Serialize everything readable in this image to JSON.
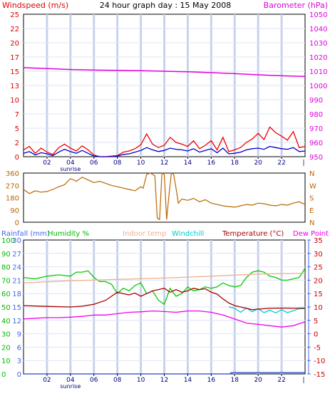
{
  "title": "24 hour graph day : 15 May 2008",
  "chart_data": [
    {
      "id": "wind_baro",
      "type": "line",
      "left_label": "Windspeed (m/s)",
      "right_label": "Barometer (hPa)",
      "left_ylim": [
        0,
        25
      ],
      "left_ticks": [
        "0",
        "2",
        "5",
        "7",
        "10",
        "13",
        "15",
        "17",
        "20",
        "22",
        "25"
      ],
      "right_ylim": [
        950,
        1050
      ],
      "right_ticks": [
        "950",
        "960",
        "970",
        "980",
        "990",
        "1000",
        "1010",
        "1020",
        "1030",
        "1040",
        "1050"
      ],
      "x_ticks": [
        "02",
        "04",
        "06",
        "08",
        "10",
        "12",
        "14",
        "16",
        "18",
        "20",
        "22"
      ],
      "x_sub_label": "sunrise",
      "series": [
        {
          "name": "Barometer",
          "axis": "right",
          "color": "#e000e0",
          "x": [
            0,
            2,
            4,
            6,
            8,
            10,
            12,
            14,
            16,
            18,
            20,
            22,
            24
          ],
          "values": [
            1012.5,
            1011.9,
            1011.2,
            1010.8,
            1010.6,
            1010.4,
            1010.0,
            1009.6,
            1009.0,
            1008.3,
            1007.5,
            1006.8,
            1006.3
          ]
        },
        {
          "name": "Wind gust",
          "axis": "left",
          "color": "#ee0000",
          "x": [
            0,
            0.5,
            1,
            1.5,
            2,
            2.5,
            3,
            3.5,
            4,
            4.5,
            5,
            5.5,
            6,
            6.5,
            7,
            7.5,
            8,
            8.5,
            9,
            9.5,
            10,
            10.5,
            11,
            11.5,
            12,
            12.5,
            13,
            13.5,
            14,
            14.5,
            15,
            15.5,
            16,
            16.5,
            17,
            17.5,
            18,
            18.5,
            19,
            19.5,
            20,
            20.5,
            21,
            21.5,
            22,
            22.5,
            23,
            23.5,
            24
          ],
          "values": [
            1.2,
            1.8,
            0.6,
            1.5,
            0.8,
            0.4,
            1.6,
            2.2,
            1.5,
            1.0,
            1.9,
            1.2,
            0.3,
            0,
            0,
            0.1,
            0.2,
            0.8,
            1.0,
            1.4,
            2.1,
            4.0,
            2.2,
            1.6,
            2.0,
            3.4,
            2.5,
            2.2,
            1.8,
            2.8,
            1.4,
            2.0,
            2.8,
            1.2,
            3.4,
            0.9,
            1.2,
            1.6,
            2.5,
            3.1,
            4.1,
            3.0,
            5.2,
            4.2,
            3.6,
            2.9,
            4.4,
            1.6,
            1.8
          ]
        },
        {
          "name": "Wind speed",
          "axis": "left",
          "color": "#0000cc",
          "x": [
            0,
            0.5,
            1,
            1.5,
            2,
            2.5,
            3,
            3.5,
            4,
            4.5,
            5,
            5.5,
            6,
            6.5,
            7,
            7.5,
            8,
            8.5,
            9,
            9.5,
            10,
            10.5,
            11,
            11.5,
            12,
            12.5,
            13,
            13.5,
            14,
            14.5,
            15,
            15.5,
            16,
            16.5,
            17,
            17.5,
            18,
            18.5,
            19,
            19.5,
            20,
            20.5,
            21,
            21.5,
            22,
            22.5,
            23,
            23.5,
            24
          ],
          "values": [
            0.6,
            0.9,
            0.3,
            0.7,
            0.5,
            0.2,
            0.8,
            1.3,
            0.9,
            0.6,
            1.1,
            0.6,
            0.1,
            0,
            0,
            0,
            0.1,
            0.4,
            0.5,
            0.8,
            1.1,
            1.6,
            1.2,
            0.9,
            1.1,
            1.5,
            1.3,
            1.2,
            1.0,
            1.4,
            0.8,
            1.1,
            1.4,
            0.7,
            1.5,
            0.5,
            0.6,
            0.8,
            1.2,
            1.4,
            1.5,
            1.3,
            1.8,
            1.6,
            1.4,
            1.3,
            1.6,
            0.9,
            1.0
          ]
        }
      ]
    },
    {
      "id": "wind_dir",
      "type": "line",
      "left_ylim": [
        0,
        360
      ],
      "left_ticks": [
        "0",
        "90",
        "180",
        "270",
        "360"
      ],
      "right_ticks": [
        "N",
        "E",
        "S",
        "W",
        "N"
      ],
      "series": [
        {
          "name": "Wind direction",
          "color": "#bb6600",
          "x": [
            0,
            0.5,
            1,
            1.5,
            2,
            2.5,
            3,
            3.5,
            4,
            4.5,
            5,
            5.5,
            6,
            6.5,
            7,
            7.5,
            8,
            8.5,
            9,
            9.5,
            10,
            10.2,
            10.5,
            10.8,
            11.0,
            11.2,
            11.4,
            11.6,
            11.8,
            12.0,
            12.2,
            12.4,
            12.6,
            12.8,
            13.0,
            13.2,
            13.5,
            14,
            14.5,
            15,
            15.5,
            16,
            16.5,
            17,
            17.5,
            18,
            18.5,
            19,
            19.5,
            20,
            20.5,
            21,
            21.5,
            22,
            22.5,
            23,
            23.5,
            24
          ],
          "values": [
            240,
            210,
            230,
            220,
            225,
            240,
            260,
            275,
            320,
            300,
            330,
            310,
            290,
            300,
            285,
            270,
            260,
            250,
            240,
            230,
            260,
            250,
            350,
            360,
            350,
            340,
            30,
            20,
            360,
            350,
            20,
            200,
            360,
            350,
            250,
            140,
            170,
            160,
            175,
            150,
            165,
            140,
            130,
            120,
            115,
            110,
            120,
            130,
            125,
            140,
            135,
            125,
            120,
            130,
            125,
            140,
            150,
            130
          ]
        }
      ]
    },
    {
      "id": "temp_hum_rain",
      "type": "line",
      "headers": [
        "Rainfall (mm)",
        "Humidity %",
        "Indoor temp",
        "Windchill",
        "Temperature (°C)",
        "Dew Point"
      ],
      "rain_ylim": [
        0,
        30
      ],
      "rain_ticks": [
        "0",
        "3",
        "6",
        "9",
        "12",
        "15",
        "18",
        "21",
        "24",
        "27",
        "30"
      ],
      "hum_ylim": [
        0,
        100
      ],
      "hum_ticks": [
        "0",
        "10",
        "20",
        "30",
        "40",
        "50",
        "60",
        "70",
        "80",
        "90",
        "100"
      ],
      "temp_ylim": [
        -15,
        35
      ],
      "temp_ticks": [
        "-15",
        "-10",
        "-5",
        "0",
        "5",
        "10",
        "15",
        "20",
        "25",
        "30",
        "35"
      ],
      "x_ticks": [
        "02",
        "04",
        "06",
        "08",
        "10",
        "12",
        "14",
        "16",
        "18",
        "20",
        "22"
      ],
      "x_sub_label": "sunrise",
      "series": [
        {
          "name": "Humidity",
          "axis": "hum",
          "color": "#00cc00",
          "x": [
            0,
            1,
            2,
            3,
            4,
            4.5,
            5,
            5.5,
            6,
            6.5,
            7,
            7.5,
            8,
            8.5,
            9,
            9.5,
            10,
            10.5,
            11,
            11.5,
            12,
            12.5,
            13,
            13.5,
            14,
            14.5,
            15,
            15.5,
            16,
            16.5,
            17,
            17.5,
            18,
            18.5,
            19,
            19.5,
            20,
            20.5,
            21,
            21.5,
            22,
            22.5,
            23,
            23.5,
            24
          ],
          "values": [
            72,
            71,
            73,
            74,
            73,
            76,
            76,
            77,
            72,
            69,
            69,
            67,
            60,
            64,
            62,
            66,
            68,
            60,
            62,
            55,
            52,
            64,
            58,
            60,
            65,
            62,
            63,
            65,
            64,
            65,
            68,
            66,
            65,
            66,
            72,
            76,
            77,
            76,
            73,
            72,
            70,
            70,
            71,
            72,
            79
          ]
        },
        {
          "name": "Indoor temp",
          "axis": "temp",
          "color": "#f0b090",
          "x": [
            0,
            4,
            8,
            12,
            16,
            20,
            24
          ],
          "values": [
            19.0,
            19.8,
            20.3,
            20.8,
            21.5,
            22.3,
            22.6
          ]
        },
        {
          "name": "Windchill",
          "axis": "temp",
          "color": "#00cccc",
          "x": [
            17.5,
            18,
            18.5,
            19,
            19.5,
            20,
            20.5,
            21,
            21.5,
            22,
            22.5,
            23,
            23.5,
            24
          ],
          "values": [
            10.0,
            9.5,
            8.0,
            9.6,
            8.2,
            9.4,
            7.9,
            8.8,
            7.8,
            9.0,
            7.9,
            8.6,
            9.4,
            9.4
          ]
        },
        {
          "name": "Temperature",
          "axis": "temp",
          "color": "#aa0000",
          "x": [
            0,
            2,
            4,
            5,
            6,
            7,
            7.5,
            8,
            8.5,
            9,
            9.5,
            10,
            10.5,
            11,
            11.5,
            12,
            12.5,
            13,
            13.5,
            14,
            14.5,
            15,
            15.5,
            16,
            16.5,
            17,
            17.5,
            18,
            18.5,
            19,
            19.5,
            20,
            21,
            22,
            23,
            24
          ],
          "values": [
            10.5,
            10.2,
            10.0,
            10.3,
            11.0,
            12.5,
            14.0,
            15.5,
            15.0,
            14.5,
            15.2,
            14.0,
            15.0,
            16.0,
            16.5,
            17.0,
            15.5,
            16.5,
            15.5,
            16.0,
            17.0,
            16.5,
            16.8,
            15.5,
            14.8,
            13.0,
            11.5,
            10.5,
            10.0,
            9.5,
            9.0,
            9.2,
            9.5,
            9.6,
            9.5,
            9.6
          ]
        },
        {
          "name": "Dew Point",
          "axis": "temp",
          "color": "#ee00ee",
          "x": [
            0,
            1,
            2,
            3,
            4,
            5,
            6,
            7,
            8,
            9,
            10,
            11,
            12,
            13,
            14,
            15,
            16,
            17,
            18,
            19,
            20,
            21,
            22,
            23,
            24
          ],
          "values": [
            5.5,
            5.8,
            6.0,
            6.0,
            6.2,
            6.5,
            7.0,
            7.0,
            7.5,
            8.0,
            8.2,
            8.5,
            8.3,
            8.0,
            8.5,
            8.5,
            8.0,
            7.0,
            5.5,
            4.0,
            3.5,
            3.0,
            2.5,
            3.0,
            4.5
          ]
        },
        {
          "name": "Rainfall",
          "axis": "rain",
          "color": "#2244cc",
          "x": [
            0,
            17.6,
            17.7,
            24
          ],
          "values": [
            0,
            0,
            0.3,
            0.3
          ]
        }
      ]
    }
  ],
  "colors": {
    "frame": "#000000",
    "grid": "#c8d2ec",
    "wind_label": "#dd0000",
    "baro_label": "#dd00dd",
    "blue_axis": "#4466ee",
    "green_axis": "#00bb00",
    "dir_axis": "#bb6600",
    "temp_axis": "#cc0000"
  }
}
